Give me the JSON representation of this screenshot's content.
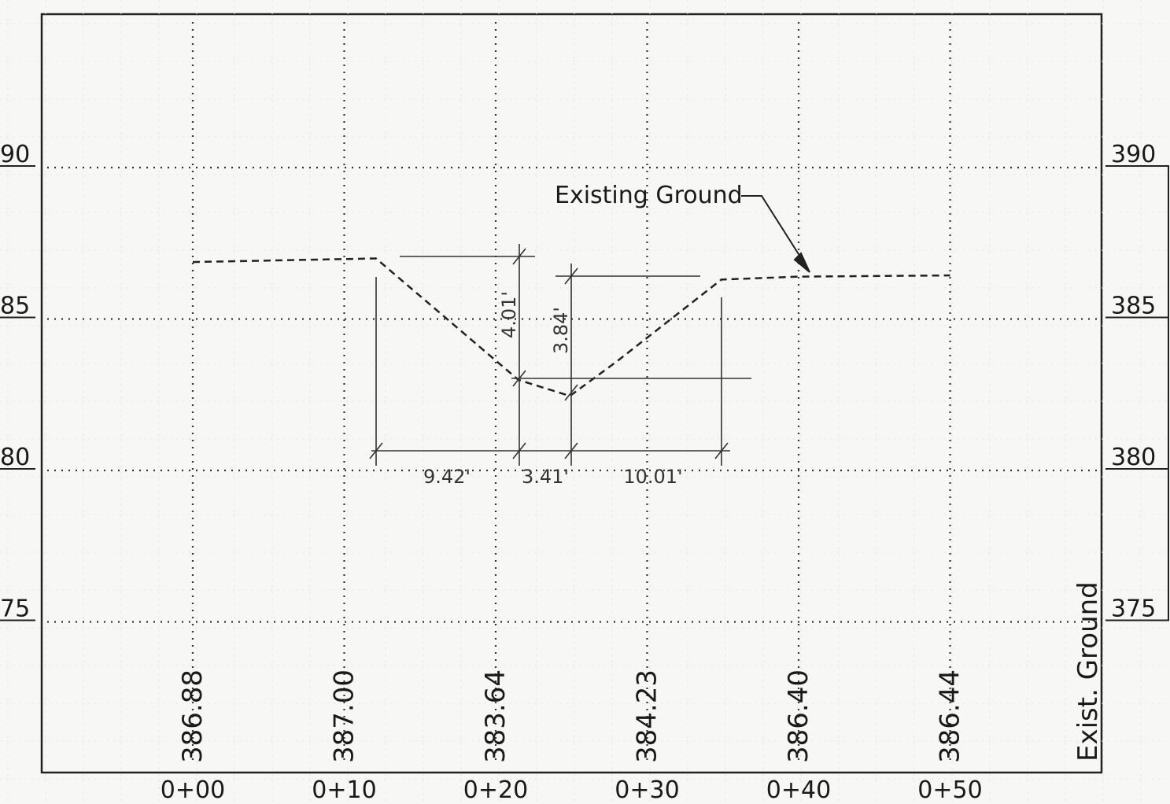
{
  "profile": {
    "elev_axis_left": [
      "90",
      "85",
      "80",
      "75"
    ],
    "elev_axis_right": [
      "390",
      "385",
      "380",
      "375"
    ],
    "elev_axis_values": [
      390,
      385,
      380,
      375
    ],
    "station_labels": [
      "0+00",
      "0+10",
      "0+20",
      "0+30",
      "0+40",
      "0+50"
    ],
    "station_values": [
      0,
      10,
      20,
      30,
      40,
      50
    ],
    "elevation_table_label": "Exist. Ground",
    "elevation_table_values": [
      "386.88",
      "387.00",
      "383.64",
      "384.23",
      "386.40",
      "386.44"
    ],
    "callout_label": "Existing Ground",
    "ground_points": [
      {
        "sta": 0,
        "elev": 386.88
      },
      {
        "sta": 12.1,
        "elev": 387.0
      },
      {
        "sta": 21.5,
        "elev": 382.99
      },
      {
        "sta": 24.9,
        "elev": 382.46
      },
      {
        "sta": 28.0,
        "elev": 383.6
      },
      {
        "sta": 34.9,
        "elev": 386.3
      },
      {
        "sta": 40.0,
        "elev": 386.4
      },
      {
        "sta": 50,
        "elev": 386.44
      }
    ],
    "dimensions": {
      "vertical": [
        "4.01'",
        "3.84'"
      ],
      "horizontal": [
        "9.42'",
        "3.41'",
        "10.01'"
      ]
    }
  }
}
